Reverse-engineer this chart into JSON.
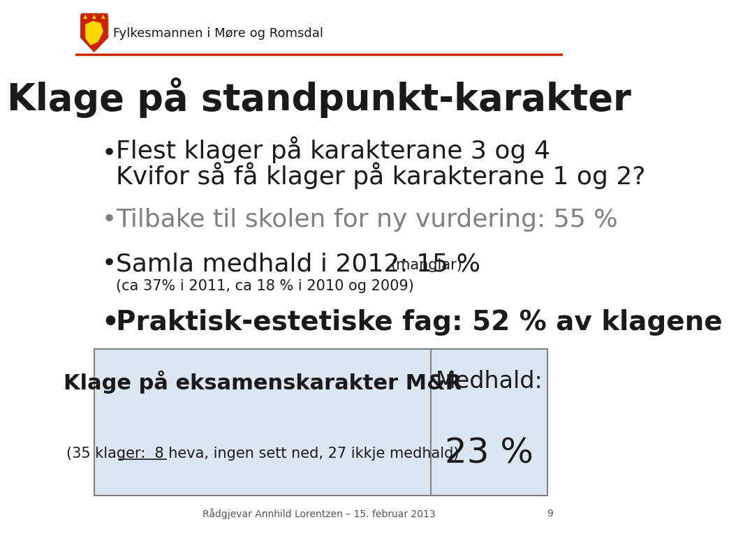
{
  "title": "Klage på standpunkt-karakter",
  "header_text": "Fylkesmannen i Møre og Romsdal",
  "bullet1_line1": "Flest klager på karakterane 3 og 4",
  "bullet1_line2": "Kvifor så få klager på karakterane 1 og 2?",
  "bullet2": "Tilbake til skolen for ny vurdering: 55 %",
  "bullet3_main": "Samla medhald i 2012: 15 % ",
  "bullet3_paren1": "(manglar)",
  "bullet3_sub": "(ca 37% i 2011, ca 18 % i 2010 og 2009)",
  "bullet4": "Praktisk-estetiske fag: 52 % av klagene",
  "table_left_title": "Klage på eksamenskarakter M&R",
  "table_left_sub": "(35 klager:  8 heva, ingen sett ned, 27 ikkje medhald)",
  "table_right_title": "Medhald:",
  "table_right_value": "23 %",
  "footer": "Rådgjevar Annhild Lorentzen – 15. februar 2013",
  "page_num": "9",
  "bg_color": "#ffffff",
  "header_red": "#cc2200",
  "table_bg": "#dce6f1",
  "title_color": "#1a1a1a",
  "bullet_color": "#1a1a1a",
  "bullet2_color": "#808080",
  "table_border_color": "#808080",
  "footer_color": "#555555",
  "header_text_color": "#1a1a1a"
}
